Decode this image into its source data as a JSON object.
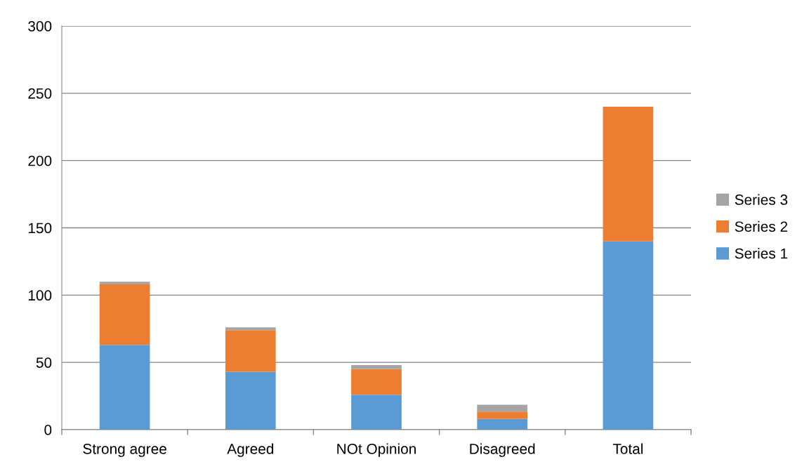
{
  "chart_data": {
    "type": "bar",
    "stacked": true,
    "categories": [
      "Strong agree",
      "Agreed",
      "NOt Opinion",
      "Disagreed",
      "Total"
    ],
    "series": [
      {
        "name": "Series 1",
        "color": "#5b9bd5",
        "values": [
          63,
          43,
          26,
          8,
          140
        ]
      },
      {
        "name": "Series 2",
        "color": "#ed7d31",
        "values": [
          45,
          31,
          19,
          5.5,
          100
        ]
      },
      {
        "name": "Series 3",
        "color": "#a5a5a5",
        "values": [
          2,
          2,
          3,
          5,
          0
        ]
      }
    ],
    "ylim": [
      0,
      300
    ],
    "yticks": [
      0,
      50,
      100,
      150,
      200,
      250,
      300
    ],
    "grid": "y",
    "legend": "right"
  }
}
